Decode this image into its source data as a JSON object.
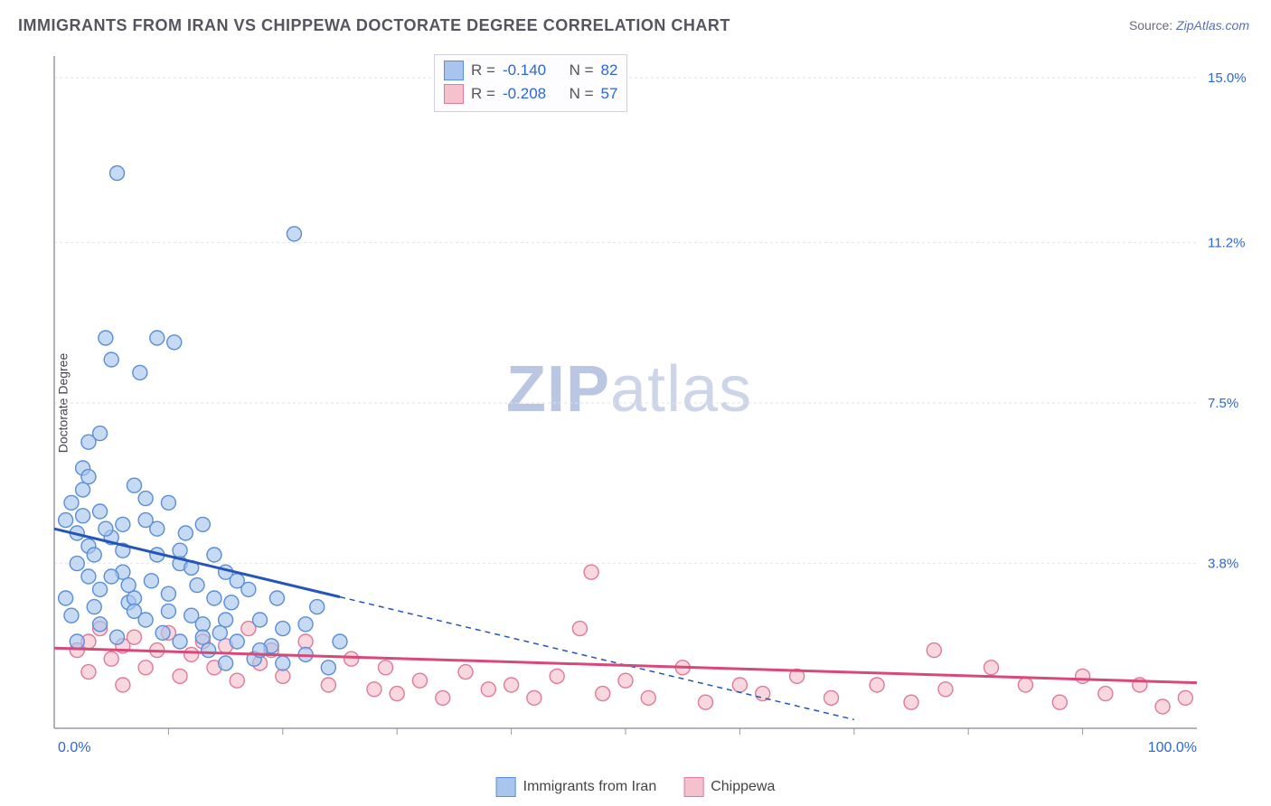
{
  "title": "IMMIGRANTS FROM IRAN VS CHIPPEWA DOCTORATE DEGREE CORRELATION CHART",
  "source_label": "Source: ",
  "source_link": "ZipAtlas.com",
  "ylabel": "Doctorate Degree",
  "watermark_bold": "ZIP",
  "watermark_light": "atlas",
  "chart": {
    "type": "scatter",
    "xlim": [
      0,
      100
    ],
    "ylim": [
      0,
      15.5
    ],
    "ytick_values": [
      3.8,
      7.5,
      11.2,
      15.0
    ],
    "ytick_labels": [
      "3.8%",
      "7.5%",
      "11.2%",
      "15.0%"
    ],
    "xtick_values": [
      0,
      100
    ],
    "xtick_labels": [
      "0.0%",
      "100.0%"
    ],
    "minor_xticks": [
      10,
      20,
      30,
      40,
      50,
      60,
      70,
      80,
      90
    ],
    "grid_color": "#e2e2ea",
    "axis_color": "#9a9aa8",
    "background": "#ffffff",
    "marker_radius": 8,
    "series": [
      {
        "name": "Immigrants from Iran",
        "fill": "#a8c6ed",
        "stroke": "#5a8ed6",
        "line_color": "#2356b8",
        "R": "-0.140",
        "N": "82",
        "trend": {
          "x1": 0,
          "y1": 4.6,
          "x2": 70,
          "y2": 0.2,
          "solid_until_x": 25
        },
        "points": [
          [
            1,
            4.8
          ],
          [
            1.5,
            5.2
          ],
          [
            2,
            4.5
          ],
          [
            2,
            3.8
          ],
          [
            2.5,
            6.0
          ],
          [
            2.5,
            5.5
          ],
          [
            3,
            4.2
          ],
          [
            3,
            6.6
          ],
          [
            3,
            3.5
          ],
          [
            3.5,
            4.0
          ],
          [
            4,
            6.8
          ],
          [
            4,
            5.0
          ],
          [
            4,
            3.2
          ],
          [
            4.5,
            9.0
          ],
          [
            5,
            8.5
          ],
          [
            5,
            4.4
          ],
          [
            5.5,
            12.8
          ],
          [
            6,
            4.1
          ],
          [
            6,
            3.6
          ],
          [
            6.5,
            2.9
          ],
          [
            7,
            5.6
          ],
          [
            7,
            3.0
          ],
          [
            7.5,
            8.2
          ],
          [
            8,
            4.8
          ],
          [
            8,
            2.5
          ],
          [
            8.5,
            3.4
          ],
          [
            9,
            9.0
          ],
          [
            9,
            4.0
          ],
          [
            9.5,
            2.2
          ],
          [
            10,
            3.1
          ],
          [
            10,
            5.2
          ],
          [
            10.5,
            8.9
          ],
          [
            11,
            3.8
          ],
          [
            11,
            2.0
          ],
          [
            11.5,
            4.5
          ],
          [
            12,
            2.6
          ],
          [
            12.5,
            3.3
          ],
          [
            13,
            4.7
          ],
          [
            13,
            2.4
          ],
          [
            13.5,
            1.8
          ],
          [
            14,
            3.0
          ],
          [
            14.5,
            2.2
          ],
          [
            15,
            3.6
          ],
          [
            15,
            1.5
          ],
          [
            15.5,
            2.9
          ],
          [
            16,
            2.0
          ],
          [
            17,
            3.2
          ],
          [
            17.5,
            1.6
          ],
          [
            18,
            2.5
          ],
          [
            19,
            1.9
          ],
          [
            19.5,
            3.0
          ],
          [
            20,
            2.3
          ],
          [
            21,
            11.4
          ],
          [
            22,
            1.7
          ],
          [
            23,
            2.8
          ],
          [
            24,
            1.4
          ],
          [
            25,
            2.0
          ],
          [
            1,
            3.0
          ],
          [
            1.5,
            2.6
          ],
          [
            2,
            2.0
          ],
          [
            2.5,
            4.9
          ],
          [
            3,
            5.8
          ],
          [
            3.5,
            2.8
          ],
          [
            4,
            2.4
          ],
          [
            4.5,
            4.6
          ],
          [
            5,
            3.5
          ],
          [
            5.5,
            2.1
          ],
          [
            6,
            4.7
          ],
          [
            6.5,
            3.3
          ],
          [
            7,
            2.7
          ],
          [
            8,
            5.3
          ],
          [
            9,
            4.6
          ],
          [
            10,
            2.7
          ],
          [
            11,
            4.1
          ],
          [
            12,
            3.7
          ],
          [
            13,
            2.1
          ],
          [
            14,
            4.0
          ],
          [
            15,
            2.5
          ],
          [
            16,
            3.4
          ],
          [
            18,
            1.8
          ],
          [
            20,
            1.5
          ],
          [
            22,
            2.4
          ]
        ]
      },
      {
        "name": "Chippewa",
        "fill": "#f4c1cd",
        "stroke": "#e07a9a",
        "line_color": "#d9487a",
        "R": "-0.208",
        "N": "57",
        "trend": {
          "x1": 0,
          "y1": 1.85,
          "x2": 100,
          "y2": 1.05,
          "solid_until_x": 100
        },
        "points": [
          [
            2,
            1.8
          ],
          [
            3,
            2.0
          ],
          [
            3,
            1.3
          ],
          [
            4,
            2.3
          ],
          [
            5,
            1.6
          ],
          [
            6,
            1.9
          ],
          [
            6,
            1.0
          ],
          [
            7,
            2.1
          ],
          [
            8,
            1.4
          ],
          [
            9,
            1.8
          ],
          [
            10,
            2.2
          ],
          [
            11,
            1.2
          ],
          [
            12,
            1.7
          ],
          [
            13,
            2.0
          ],
          [
            14,
            1.4
          ],
          [
            15,
            1.9
          ],
          [
            16,
            1.1
          ],
          [
            17,
            2.3
          ],
          [
            18,
            1.5
          ],
          [
            19,
            1.8
          ],
          [
            20,
            1.2
          ],
          [
            22,
            2.0
          ],
          [
            24,
            1.0
          ],
          [
            26,
            1.6
          ],
          [
            28,
            0.9
          ],
          [
            29,
            1.4
          ],
          [
            30,
            0.8
          ],
          [
            32,
            1.1
          ],
          [
            34,
            0.7
          ],
          [
            36,
            1.3
          ],
          [
            38,
            0.9
          ],
          [
            40,
            1.0
          ],
          [
            42,
            0.7
          ],
          [
            44,
            1.2
          ],
          [
            46,
            2.3
          ],
          [
            47,
            3.6
          ],
          [
            48,
            0.8
          ],
          [
            50,
            1.1
          ],
          [
            52,
            0.7
          ],
          [
            55,
            1.4
          ],
          [
            57,
            0.6
          ],
          [
            60,
            1.0
          ],
          [
            62,
            0.8
          ],
          [
            65,
            1.2
          ],
          [
            68,
            0.7
          ],
          [
            72,
            1.0
          ],
          [
            75,
            0.6
          ],
          [
            77,
            1.8
          ],
          [
            78,
            0.9
          ],
          [
            82,
            1.4
          ],
          [
            85,
            1.0
          ],
          [
            88,
            0.6
          ],
          [
            90,
            1.2
          ],
          [
            92,
            0.8
          ],
          [
            95,
            1.0
          ],
          [
            97,
            0.5
          ],
          [
            99,
            0.7
          ]
        ]
      }
    ]
  },
  "stat_box": {
    "rlabel": "R =",
    "nlabel": "N ="
  },
  "legend": {
    "series1": "Immigrants from Iran",
    "series2": "Chippewa"
  }
}
